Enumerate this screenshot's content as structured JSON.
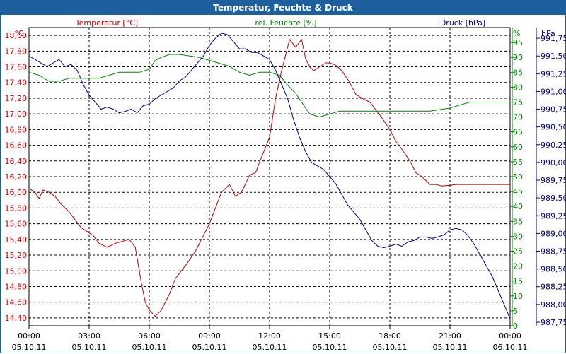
{
  "title": "Temperatur, Feuchte & Druck",
  "colors": {
    "titlebar": "#1e5f9e",
    "temperature": "#c00000",
    "humidity": "#008000",
    "pressure": "#00008b",
    "grid": "#000000"
  },
  "chart_data": {
    "type": "line",
    "title": "Temperatur, Feuchte & Druck",
    "x_ticks": [
      {
        "time": "00:00",
        "date": "05.10.11"
      },
      {
        "time": "03:00",
        "date": "05.10.11"
      },
      {
        "time": "06:00",
        "date": "05.10.11"
      },
      {
        "time": "09:00",
        "date": "05.10.11"
      },
      {
        "time": "12:00",
        "date": "05.10.11"
      },
      {
        "time": "15:00",
        "date": "05.10.11"
      },
      {
        "time": "18:00",
        "date": "05.10.11"
      },
      {
        "time": "21:00",
        "date": "05.10.11"
      },
      {
        "time": "00:00",
        "date": "06.10.11"
      }
    ],
    "xlim_hours": [
      0,
      24
    ],
    "axes": {
      "temperature": {
        "label": "Temperatur [°C]",
        "unit": "°C",
        "ylim": [
          14.3,
          18.1
        ],
        "ticks": [
          "14,40",
          "14,60",
          "14,80",
          "15,00",
          "15,20",
          "15,40",
          "15,60",
          "15,80",
          "16,00",
          "16,20",
          "16,40",
          "16,60",
          "16,80",
          "17,00",
          "17,20",
          "17,40",
          "17,60",
          "17,80",
          "18,00"
        ],
        "tick_values": [
          14.4,
          14.6,
          14.8,
          15.0,
          15.2,
          15.4,
          15.6,
          15.8,
          16.0,
          16.2,
          16.4,
          16.6,
          16.8,
          17.0,
          17.2,
          17.4,
          17.6,
          17.8,
          18.0
        ]
      },
      "humidity": {
        "label": "rel. Feuchte [%]",
        "unit": "%",
        "ylim": [
          0,
          100
        ],
        "ticks": [
          "0",
          "5",
          "10",
          "15",
          "20",
          "25",
          "30",
          "35",
          "40",
          "45",
          "50",
          "55",
          "60",
          "65",
          "70",
          "75",
          "80",
          "85",
          "90",
          "95"
        ],
        "tick_values": [
          0,
          5,
          10,
          15,
          20,
          25,
          30,
          35,
          40,
          45,
          50,
          55,
          60,
          65,
          70,
          75,
          80,
          85,
          90,
          95
        ]
      },
      "pressure": {
        "label": "Druck [hPa]",
        "unit": "hPa",
        "ylim": [
          987.7,
          991.9
        ],
        "ticks": [
          "987,75",
          "988,00",
          "988,25",
          "988,50",
          "988,75",
          "989,00",
          "989,25",
          "989,50",
          "989,75",
          "990,00",
          "990,25",
          "990,50",
          "990,75",
          "991,00",
          "991,25",
          "991,50",
          "991,75"
        ],
        "tick_values": [
          987.75,
          988.0,
          988.25,
          988.5,
          988.75,
          989.0,
          989.25,
          989.5,
          989.75,
          990.0,
          990.25,
          990.5,
          990.75,
          991.0,
          991.25,
          991.5,
          991.75
        ]
      }
    },
    "series": [
      {
        "name": "Temperatur [°C]",
        "axis": "temperature",
        "x": [
          0,
          0.3,
          0.5,
          0.7,
          1,
          1.3,
          1.6,
          2,
          2.3,
          2.6,
          2.9,
          3.2,
          3.5,
          3.9,
          4.3,
          4.7,
          5,
          5.3,
          5.6,
          5.8,
          6,
          6.3,
          6.6,
          7,
          7.3,
          7.6,
          7.9,
          8.3,
          8.6,
          9,
          9.3,
          9.6,
          10,
          10.3,
          10.6,
          11,
          11.3,
          11.6,
          12,
          12.3,
          12.6,
          13,
          13.3,
          13.6,
          13.8,
          14,
          14.2,
          14.5,
          14.8,
          15,
          15.3,
          15.6,
          16,
          16.3,
          16.6,
          17,
          17.3,
          17.6,
          18,
          18.3,
          18.6,
          19,
          19.3,
          19.6,
          20,
          20.3,
          20.6,
          21,
          21.3,
          21.6,
          22,
          22.3,
          22.6,
          23,
          23.3,
          23.6,
          24
        ],
        "values": [
          16.05,
          16.0,
          15.92,
          16.03,
          16.0,
          15.95,
          15.85,
          15.75,
          15.65,
          15.55,
          15.5,
          15.45,
          15.35,
          15.3,
          15.35,
          15.38,
          15.4,
          15.3,
          14.85,
          14.6,
          14.5,
          14.42,
          14.5,
          14.7,
          14.9,
          15.0,
          15.1,
          15.25,
          15.4,
          15.6,
          15.8,
          16.0,
          16.1,
          15.95,
          16.0,
          16.22,
          16.25,
          16.45,
          16.7,
          17.2,
          17.55,
          17.95,
          17.85,
          17.95,
          17.7,
          17.6,
          17.55,
          17.6,
          17.65,
          17.65,
          17.62,
          17.55,
          17.4,
          17.25,
          17.2,
          17.15,
          17.05,
          16.95,
          16.8,
          16.65,
          16.55,
          16.4,
          16.25,
          16.2,
          16.1,
          16.1,
          16.08,
          16.09,
          16.1,
          16.1,
          16.1,
          16.1,
          16.1,
          16.1,
          16.1,
          16.1,
          16.1
        ]
      },
      {
        "name": "rel. Feuchte [%]",
        "axis": "humidity",
        "x": [
          0,
          0.5,
          1,
          1.5,
          2,
          2.5,
          3,
          3.5,
          4,
          4.5,
          5,
          5.5,
          6,
          6.3,
          6.6,
          7,
          7.5,
          8,
          8.5,
          9,
          9.5,
          10,
          10.5,
          11,
          11.5,
          12,
          12.5,
          13,
          13.3,
          13.6,
          14,
          14.5,
          15,
          15.5,
          16,
          16.5,
          17,
          17.5,
          18,
          18.5,
          19,
          19.5,
          20,
          20.5,
          21,
          21.5,
          22,
          22.5,
          23,
          23.5,
          24
        ],
        "values": [
          85,
          84,
          82,
          82,
          83,
          83,
          83,
          83,
          84,
          85,
          85,
          85,
          86,
          89,
          90,
          91,
          91,
          90.5,
          90,
          89,
          88,
          87,
          85,
          84,
          85,
          85,
          84,
          80,
          78,
          75,
          71,
          70,
          71,
          72,
          72,
          72,
          72,
          72,
          72,
          72,
          72,
          72,
          72,
          72.5,
          73,
          74,
          75,
          75,
          75,
          75,
          75
        ]
      },
      {
        "name": "Druck [hPa]",
        "axis": "pressure",
        "x": [
          0,
          0.3,
          0.6,
          0.9,
          1.2,
          1.5,
          1.8,
          2.1,
          2.4,
          2.7,
          3,
          3.3,
          3.6,
          3.9,
          4.2,
          4.5,
          4.8,
          5.1,
          5.4,
          5.7,
          6,
          6.3,
          6.6,
          6.9,
          7.2,
          7.5,
          7.8,
          8.1,
          8.4,
          8.7,
          9,
          9.3,
          9.6,
          9.9,
          10.2,
          10.5,
          10.8,
          11.1,
          11.4,
          11.7,
          12,
          12.3,
          12.6,
          12.9,
          13.2,
          13.5,
          13.8,
          14.1,
          14.4,
          14.7,
          15,
          15.3,
          15.6,
          15.9,
          16.2,
          16.5,
          16.8,
          17.1,
          17.4,
          17.7,
          18,
          18.3,
          18.6,
          18.9,
          19.2,
          19.5,
          19.8,
          20.1,
          20.4,
          20.7,
          21,
          21.3,
          21.6,
          21.9,
          22.2,
          22.5,
          22.8,
          23.1,
          23.4,
          23.7,
          24
        ],
        "values": [
          991.5,
          991.45,
          991.4,
          991.35,
          991.4,
          991.45,
          991.35,
          991.38,
          991.3,
          991.1,
          990.95,
          990.85,
          990.75,
          990.78,
          990.75,
          990.7,
          990.72,
          990.75,
          990.7,
          990.8,
          990.82,
          990.9,
          990.95,
          991.0,
          991.05,
          991.15,
          991.2,
          991.3,
          991.4,
          991.5,
          991.65,
          991.75,
          991.82,
          991.8,
          991.7,
          991.6,
          991.6,
          991.55,
          991.55,
          991.5,
          991.45,
          991.3,
          991.1,
          990.9,
          990.6,
          990.35,
          990.15,
          990.0,
          989.95,
          989.9,
          989.8,
          989.7,
          989.55,
          989.4,
          989.3,
          989.2,
          989.05,
          988.9,
          988.82,
          988.8,
          988.82,
          988.85,
          988.82,
          988.88,
          988.9,
          988.95,
          988.95,
          988.93,
          988.95,
          988.98,
          989.05,
          989.07,
          989.05,
          988.97,
          988.85,
          988.7,
          988.55,
          988.4,
          988.2,
          988.0,
          987.8
        ]
      }
    ]
  }
}
